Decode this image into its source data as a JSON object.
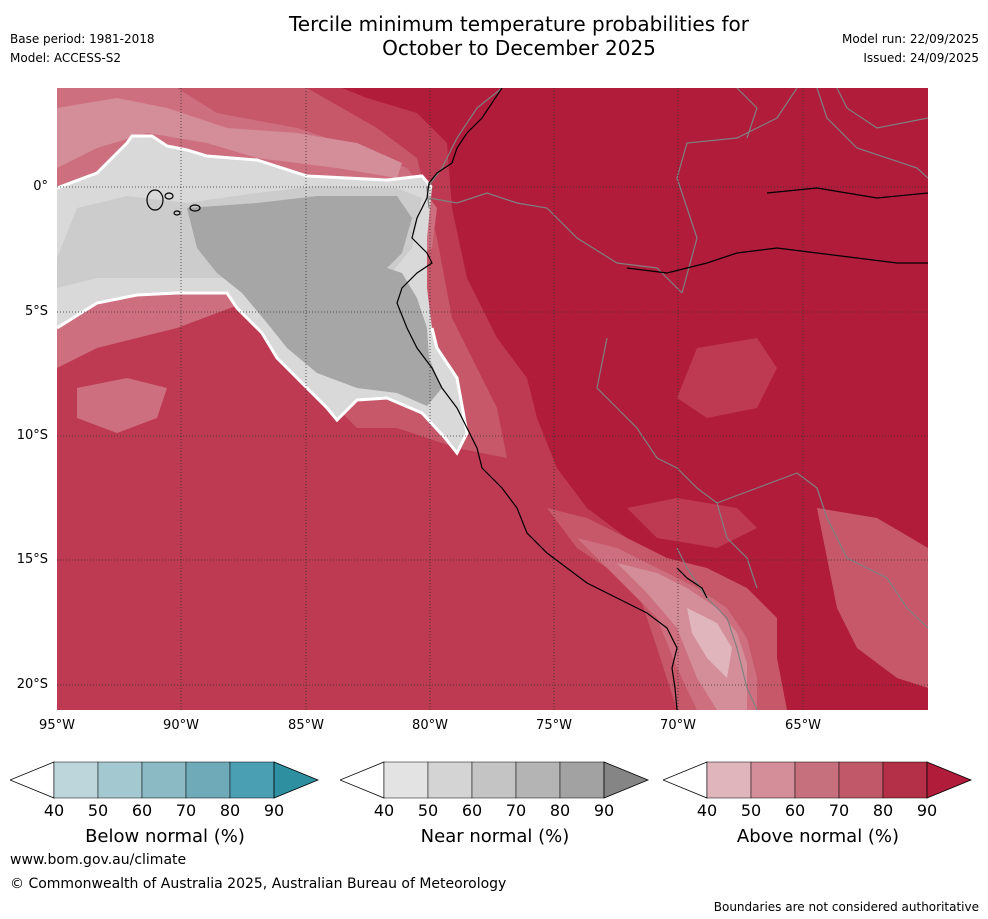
{
  "header": {
    "title_line1": "Tercile minimum temperature probabilities for",
    "title_line2": "October to December 2025",
    "base_period": "Base period: 1981-2018",
    "model": "Model: ACCESS-S2",
    "model_run": "Model run: 22/09/2025",
    "issued": "Issued: 24/09/2025"
  },
  "map": {
    "lat_labels": [
      "0°",
      "5°S",
      "10°S",
      "15°S",
      "20°S"
    ],
    "lon_labels": [
      "95°W",
      "90°W",
      "85°W",
      "80°W",
      "75°W",
      "70°W",
      "65°W"
    ],
    "colors": {
      "above_90": "#b01c3a",
      "above_80": "#bd3a52",
      "above_70": "#c6586a",
      "above_60": "#cd6f7e",
      "above_50": "#d48e99",
      "above_40": "#e0b5bc",
      "near_40": "#d9d9d9",
      "near_50": "#cccccc",
      "near_70": "#a6a6a6",
      "grid": "#333333",
      "border": "#808080",
      "coast": "#000000"
    }
  },
  "colorbars": [
    {
      "name": "below",
      "label": "Below normal (%)",
      "ticks": [
        "40",
        "50",
        "60",
        "70",
        "80",
        "90"
      ],
      "colors": [
        "#ffffff",
        "#bdd6dc",
        "#a4c8d0",
        "#8bb9c4",
        "#6eaab8",
        "#4aa0b2",
        "#2e8fa0"
      ]
    },
    {
      "name": "near",
      "label": "Near normal (%)",
      "ticks": [
        "40",
        "50",
        "60",
        "70",
        "80",
        "90"
      ],
      "colors": [
        "#ffffff",
        "#e3e3e3",
        "#d4d4d4",
        "#c4c4c4",
        "#b4b4b4",
        "#a2a2a2",
        "#858585"
      ]
    },
    {
      "name": "above",
      "label": "Above normal (%)",
      "ticks": [
        "40",
        "50",
        "60",
        "70",
        "80",
        "90"
      ],
      "colors": [
        "#ffffff",
        "#e0b5bc",
        "#d48e99",
        "#c6707d",
        "#c0586a",
        "#b43048",
        "#b01c3a"
      ]
    }
  ],
  "footer": {
    "website": "www.bom.gov.au/climate",
    "copyright": "© Commonwealth of Australia 2025, Australian Bureau of Meteorology",
    "disclaimer": "Boundaries are not considered authoritative"
  }
}
